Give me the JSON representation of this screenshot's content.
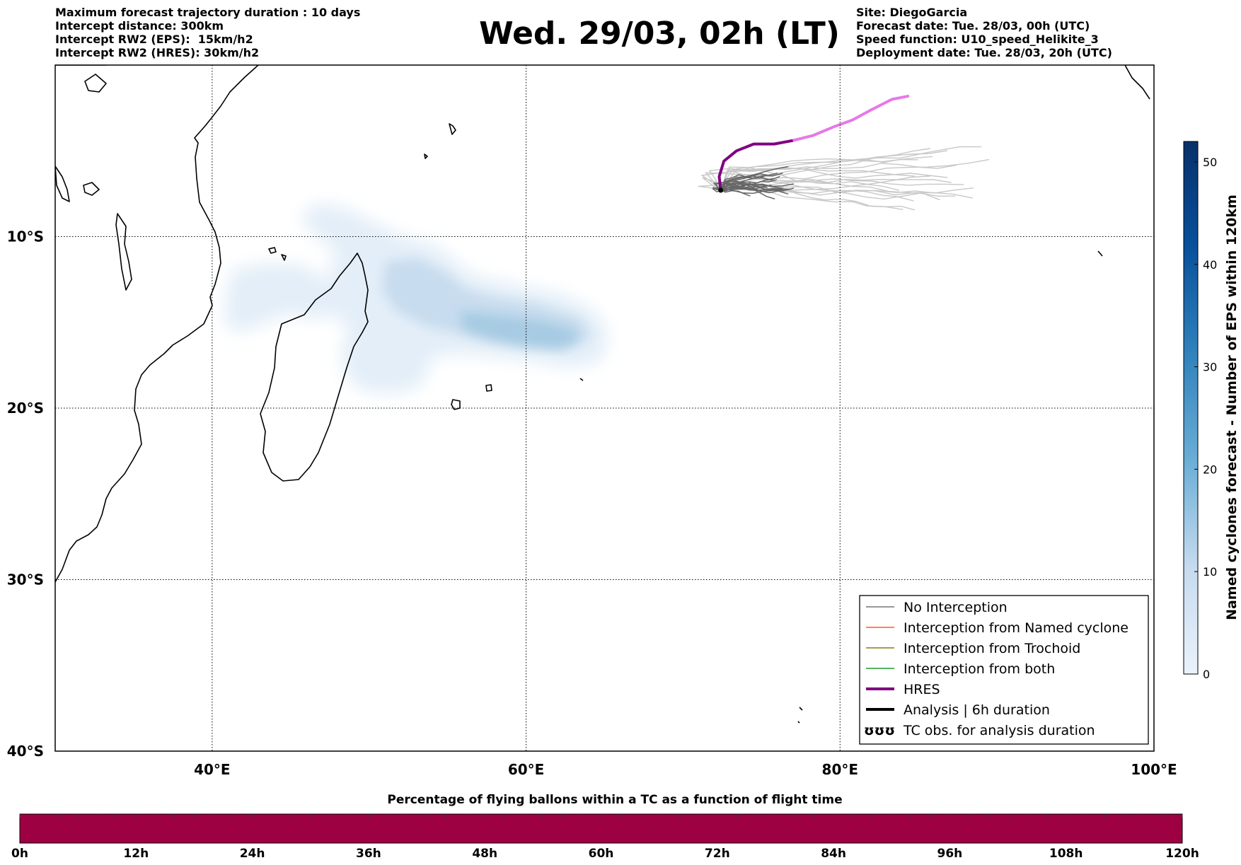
{
  "header": {
    "left_lines": [
      "Maximum forecast trajectory duration : 10 days",
      "Intercept distance: 300km",
      "Intercept RW2 (EPS):  15km/h2",
      "Intercept RW2 (HRES): 30km/h2"
    ],
    "title": "Wed. 29/03, 02h (LT)",
    "right_lines": [
      "Site: DiegoGarcia",
      "Forecast date: Tue. 28/03, 00h (UTC)",
      "Speed function: U10_speed_Helikite_3",
      "Deployment date: Tue. 28/03, 20h (UTC)"
    ]
  },
  "map": {
    "lon_range": [
      30,
      100
    ],
    "lat_range": [
      -40,
      0
    ],
    "lat_labels": [
      {
        "lat": -10,
        "text": "10°S"
      },
      {
        "lat": -20,
        "text": "20°S"
      },
      {
        "lat": -30,
        "text": "30°S"
      },
      {
        "lat": -40,
        "text": "40°S"
      }
    ],
    "lon_labels": [
      {
        "lon": 40,
        "text": "40°E"
      },
      {
        "lon": 60,
        "text": "60°E"
      },
      {
        "lon": 80,
        "text": "80°E"
      },
      {
        "lon": 100,
        "text": "100°E"
      }
    ],
    "deployment_site": {
      "lon": 72.4,
      "lat": -7.3
    },
    "hres_track": [
      [
        72.4,
        -7.3
      ],
      [
        72.3,
        -6.5
      ],
      [
        72.6,
        -5.6
      ],
      [
        73.4,
        -5.0
      ],
      [
        74.5,
        -4.6
      ],
      [
        75.8,
        -4.6
      ],
      [
        77.0,
        -4.4
      ],
      [
        78.3,
        -4.1
      ],
      [
        79.6,
        -3.6
      ],
      [
        80.8,
        -3.2
      ],
      [
        82.0,
        -2.6
      ],
      [
        83.3,
        -2.0
      ],
      [
        84.4,
        -1.8
      ]
    ],
    "eps_density_peak": {
      "lon": 61,
      "lat": -16.8,
      "max_count": 8
    }
  },
  "legend": {
    "items": [
      {
        "label": "No Interception",
        "color": "#777777",
        "width": 1.5,
        "kind": "line"
      },
      {
        "label": "Interception from Named cyclone",
        "color": "#ff5a1e",
        "width": 1.5,
        "kind": "line"
      },
      {
        "label": "Interception from Trochoid",
        "color": "#8c7a1a",
        "width": 1.5,
        "kind": "line"
      },
      {
        "label": "Interception from both",
        "color": "#1a9e2a",
        "width": 1.5,
        "kind": "line"
      },
      {
        "label": "HRES",
        "color": "#800080",
        "width": 4,
        "kind": "line"
      },
      {
        "label": "Analysis | 6h duration",
        "color": "#000000",
        "width": 4,
        "kind": "line"
      },
      {
        "label": "TC obs. for analysis duration",
        "color": "#000000",
        "kind": "symbol",
        "symbol": "ʊʊʊ"
      }
    ]
  },
  "colorbar": {
    "label": "Named cyclones forecast - Number of EPS within 120km",
    "min": 0,
    "max": 52,
    "ticks": [
      0,
      10,
      20,
      30,
      40,
      50
    ],
    "color_low": "#eaf2fb",
    "color_high": "#08306b"
  },
  "bottom_bar": {
    "title": "Percentage of flying ballons within a TC as a function of flight time",
    "color": "#9e0142",
    "ticks": [
      "0h",
      "12h",
      "24h",
      "36h",
      "48h",
      "60h",
      "72h",
      "84h",
      "96h",
      "108h",
      "120h"
    ]
  }
}
